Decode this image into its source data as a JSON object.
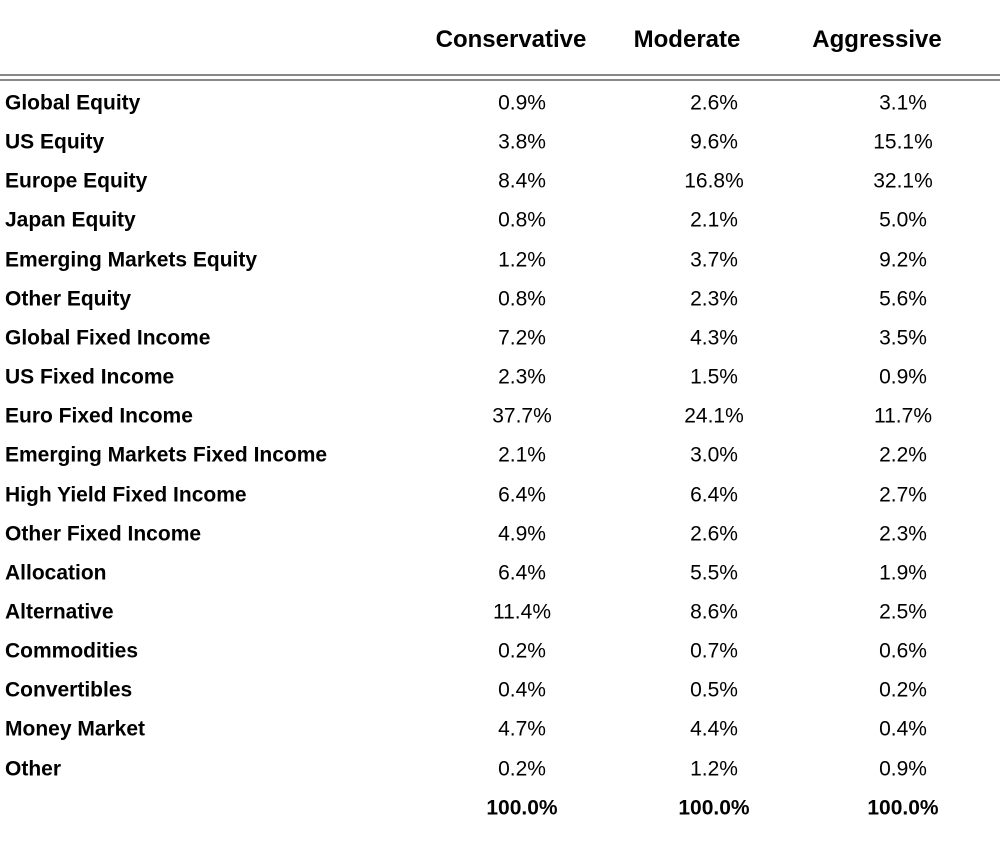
{
  "table": {
    "headers": [
      "Conservative",
      "Moderate",
      "Aggressive"
    ],
    "rows": [
      [
        "Global Equity",
        "0.9%",
        "2.6%",
        "3.1%"
      ],
      [
        "US Equity",
        "3.8%",
        "9.6%",
        "15.1%"
      ],
      [
        "Europe Equity",
        "8.4%",
        "16.8%",
        "32.1%"
      ],
      [
        "Japan Equity",
        "0.8%",
        "2.1%",
        "5.0%"
      ],
      [
        "Emerging Markets Equity",
        "1.2%",
        "3.7%",
        "9.2%"
      ],
      [
        "Other Equity",
        "0.8%",
        "2.3%",
        "5.6%"
      ],
      [
        "Global Fixed Income",
        "7.2%",
        "4.3%",
        "3.5%"
      ],
      [
        "US Fixed Income",
        "2.3%",
        "1.5%",
        "0.9%"
      ],
      [
        "Euro Fixed Income",
        "37.7%",
        "24.1%",
        "11.7%"
      ],
      [
        "Emerging Markets Fixed Income",
        "2.1%",
        "3.0%",
        "2.2%"
      ],
      [
        "High Yield Fixed Income",
        "6.4%",
        "6.4%",
        "2.7%"
      ],
      [
        "Other Fixed Income",
        "4.9%",
        "2.6%",
        "2.3%"
      ],
      [
        "Allocation",
        "6.4%",
        "5.5%",
        "1.9%"
      ],
      [
        "Alternative",
        "11.4%",
        "8.6%",
        "2.5%"
      ],
      [
        "Commodities",
        "0.2%",
        "0.7%",
        "0.6%"
      ],
      [
        "Convertibles",
        "0.4%",
        "0.5%",
        "0.2%"
      ],
      [
        "Money Market",
        "4.7%",
        "4.4%",
        "0.4%"
      ],
      [
        "Other",
        "0.2%",
        "1.2%",
        "0.9%"
      ]
    ],
    "totals": [
      "100.0%",
      "100.0%",
      "100.0%"
    ]
  }
}
